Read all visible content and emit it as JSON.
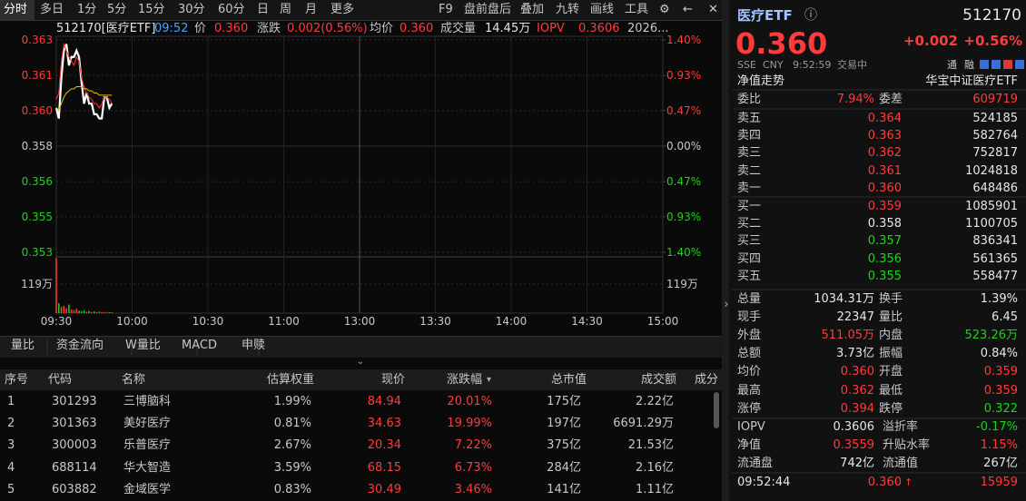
{
  "toolbar": {
    "tabs": [
      "分时",
      "多日",
      "1分",
      "5分",
      "15分",
      "30分",
      "60分",
      "日",
      "周",
      "月",
      "更多"
    ],
    "tools": [
      "F9",
      "盘前盘后",
      "叠加",
      "九转",
      "画线",
      "工具"
    ]
  },
  "info": [
    "512170[医疗ETF]",
    "09:52",
    "价",
    "0.360",
    "涨跌",
    "0.002(0.56%)",
    "均价",
    "0.360",
    "成交量",
    "14.45万",
    "IOPV",
    "0.3606",
    "2026..."
  ],
  "chart_data": {
    "type": "line",
    "x": [
      0,
      1,
      2,
      3,
      4,
      5,
      6,
      7,
      8,
      9,
      10,
      11,
      12,
      13,
      14,
      15,
      16,
      17,
      18,
      19,
      20,
      21,
      22
    ],
    "series": [
      {
        "color": "#ffffff",
        "values": [
          0.3598,
          0.3593,
          0.3612,
          0.3625,
          0.3628,
          0.3618,
          0.3622,
          0.3622,
          0.3625,
          0.3622,
          0.361,
          0.36,
          0.3605,
          0.36,
          0.36,
          0.3595,
          0.3595,
          0.3593,
          0.3593,
          0.3603,
          0.3603,
          0.3598,
          0.36
        ]
      },
      {
        "color": "#ff3333",
        "values": [
          0.3602,
          0.3605,
          0.362,
          0.3628,
          0.3625,
          0.3622,
          0.362,
          0.3618,
          0.3622,
          0.362,
          0.3612,
          0.3608,
          0.3605,
          0.3603,
          0.3602,
          0.36,
          0.36,
          0.3598,
          0.36,
          0.3603,
          0.3603,
          0.3602,
          0.36
        ]
      },
      {
        "color": "#e8c400",
        "values": [
          0.3598,
          0.3597,
          0.36,
          0.3603,
          0.3605,
          0.3606,
          0.3607,
          0.3607,
          0.3608,
          0.3608,
          0.3608,
          0.3607,
          0.3607,
          0.3606,
          0.3606,
          0.3605,
          0.3605,
          0.3604,
          0.3604,
          0.3604,
          0.3604,
          0.3604,
          0.3604
        ]
      }
    ],
    "xlim": [
      0,
      240
    ],
    "xticks": [
      {
        "value": 0,
        "label": "09:30"
      },
      {
        "value": 30,
        "label": "10:00"
      },
      {
        "value": 60,
        "label": "10:30"
      },
      {
        "value": 90,
        "label": "11:00"
      },
      {
        "value": 120,
        "label": "13:00"
      },
      {
        "value": 150,
        "label": "13:30"
      },
      {
        "value": 180,
        "label": "14:00"
      },
      {
        "value": 210,
        "label": "14:30"
      },
      {
        "value": 240,
        "label": "15:00"
      }
    ],
    "ylim": [
      0.353,
      0.363
    ],
    "yticks": [
      {
        "value": 0.363,
        "label": "0.363"
      },
      {
        "value": 0.36133,
        "label": "0.361"
      },
      {
        "value": 0.35967,
        "label": "0.360"
      },
      {
        "value": 0.358,
        "label": "0.358"
      },
      {
        "value": 0.35633,
        "label": "0.356"
      },
      {
        "value": 0.35467,
        "label": "0.355"
      },
      {
        "value": 0.353,
        "label": "0.353"
      }
    ],
    "y2ticks": [
      {
        "value": 1.4,
        "label": "1.40%"
      },
      {
        "value": 0.93,
        "label": "0.93%"
      },
      {
        "value": 0.47,
        "label": "0.47%"
      },
      {
        "value": 0,
        "label": "0.00%"
      },
      {
        "value": -0.47,
        "label": "0.47%"
      },
      {
        "value": -0.93,
        "label": "0.93%"
      },
      {
        "value": -1.4,
        "label": "1.40%"
      }
    ],
    "y2lim": [
      -1.4,
      1.4
    ],
    "volume": {
      "values": [
        225,
        40,
        25,
        30,
        20,
        35,
        15,
        12,
        18,
        10,
        8,
        12,
        6,
        9,
        5,
        7,
        5,
        6,
        4,
        5,
        3,
        4,
        4
      ],
      "ylim": [
        0,
        230
      ],
      "yticks": [
        {
          "value": 119,
          "label": "119万"
        }
      ]
    }
  },
  "bottom_tabs": [
    "量比",
    "资金流向",
    "W量比",
    "MACD",
    "申赎"
  ],
  "table": {
    "header": [
      "序号",
      "代码",
      "名称",
      "估算权重",
      "现价",
      "涨跌幅",
      "总市值",
      "成交额",
      "成分"
    ],
    "rows": [
      [
        "1",
        "301293",
        "三博脑科",
        "1.99%",
        "84.94",
        "20.01%",
        "175亿",
        "2.22亿"
      ],
      [
        "2",
        "301363",
        "美好医疗",
        "0.81%",
        "34.63",
        "19.99%",
        "197亿",
        "6691.29万"
      ],
      [
        "3",
        "300003",
        "乐普医疗",
        "2.67%",
        "20.34",
        "7.22%",
        "375亿",
        "21.53亿"
      ],
      [
        "4",
        "688114",
        "华大智造",
        "3.59%",
        "68.15",
        "6.73%",
        "284亿",
        "2.16亿"
      ],
      [
        "5",
        "603882",
        "金域医学",
        "0.83%",
        "30.49",
        "3.46%",
        "141亿",
        "1.11亿"
      ]
    ]
  },
  "quote": {
    "name": "医疗ETF",
    "code": "512170",
    "price": "0.360",
    "change": "+0.002",
    "pct": "+0.56%",
    "meta": [
      "SSE",
      "CNY",
      "9:52:59",
      "交易中"
    ],
    "badges": [
      "通",
      "融"
    ],
    "nav": "净值走势",
    "full_name": "华宝中证医疗ETF"
  },
  "order_book": {
    "ratio": [
      "委比",
      "7.94%",
      "委差",
      "609719"
    ],
    "asks": [
      [
        "卖五",
        "0.364",
        "524185"
      ],
      [
        "卖四",
        "0.363",
        "582764"
      ],
      [
        "卖三",
        "0.362",
        "752817"
      ],
      [
        "卖二",
        "0.361",
        "1024818"
      ],
      [
        "卖一",
        "0.360",
        "648486"
      ]
    ],
    "bids": [
      [
        "买一",
        "0.359",
        "1085901"
      ],
      [
        "买二",
        "0.358",
        "1100705"
      ],
      [
        "买三",
        "0.357",
        "836341"
      ],
      [
        "买四",
        "0.356",
        "561365"
      ],
      [
        "买五",
        "0.355",
        "558477"
      ]
    ]
  },
  "stats": [
    [
      "总量",
      "1034.31万",
      "换手",
      "1.39%"
    ],
    [
      "现手",
      "22347",
      "量比",
      "6.45"
    ],
    [
      "外盘",
      "511.05万",
      "内盘",
      "523.26万"
    ],
    [
      "总额",
      "3.73亿",
      "振幅",
      "0.84%"
    ],
    [
      "均价",
      "0.360",
      "开盘",
      "0.359"
    ],
    [
      "最高",
      "0.362",
      "最低",
      "0.359"
    ],
    [
      "涨停",
      "0.394",
      "跌停",
      "0.322"
    ]
  ],
  "nav_stats": [
    [
      "IOPV",
      "0.3606",
      "溢折率",
      "-0.17%"
    ],
    [
      "净值",
      "0.3559",
      "升贴水率",
      "1.15%"
    ],
    [
      "流通盘",
      "742亿",
      "流通值",
      "267亿"
    ]
  ],
  "trades": [
    [
      "09:52:44",
      "0.360",
      "15959"
    ]
  ]
}
